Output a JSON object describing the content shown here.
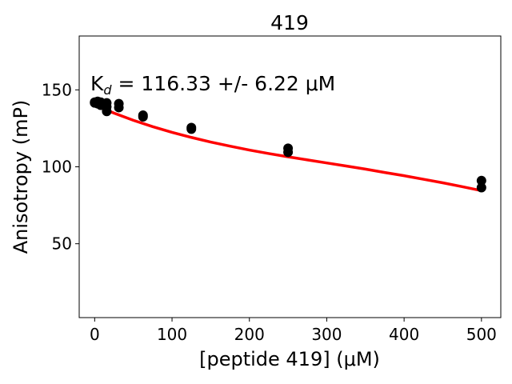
{
  "chart_data": {
    "type": "scatter",
    "title": "419",
    "xlabel": "[peptide 419] (μM)",
    "ylabel": "Anisotropy (mP)",
    "annotation": {
      "prefix": "K",
      "subscript": "d",
      "text": " = 116.33 +/- 6.22 μM"
    },
    "xlim": [
      -20,
      525
    ],
    "ylim": [
      2,
      185
    ],
    "xticks": [
      0,
      100,
      200,
      300,
      400,
      500
    ],
    "yticks": [
      50,
      100,
      150
    ],
    "grid": false,
    "points": [
      {
        "x": 0,
        "y": 141.5
      },
      {
        "x": 0,
        "y": 142.0
      },
      {
        "x": 3.9,
        "y": 141.0
      },
      {
        "x": 3.9,
        "y": 142.5
      },
      {
        "x": 7.8,
        "y": 140.0
      },
      {
        "x": 7.8,
        "y": 142.0
      },
      {
        "x": 15.6,
        "y": 136.0
      },
      {
        "x": 15.6,
        "y": 139.0
      },
      {
        "x": 15.6,
        "y": 141.5
      },
      {
        "x": 31.25,
        "y": 138.5
      },
      {
        "x": 31.25,
        "y": 141.0
      },
      {
        "x": 62.5,
        "y": 132.5
      },
      {
        "x": 62.5,
        "y": 133.5
      },
      {
        "x": 125,
        "y": 124.5
      },
      {
        "x": 125,
        "y": 125.5
      },
      {
        "x": 250,
        "y": 109.5
      },
      {
        "x": 250,
        "y": 112.0
      },
      {
        "x": 500,
        "y": 86.5
      },
      {
        "x": 500,
        "y": 91.0
      }
    ],
    "fit": {
      "color": "#ff0000",
      "x": [
        0,
        25,
        50,
        75,
        100,
        125,
        150,
        175,
        200,
        225,
        250,
        275,
        300,
        325,
        350,
        375,
        400,
        425,
        450,
        475,
        500
      ],
      "y": [
        140,
        134.9,
        130.2,
        126.1,
        122.4,
        119.1,
        116.1,
        113.4,
        110.9,
        108.6,
        106.5,
        104.5,
        102.5,
        100.5,
        98.5,
        96.3,
        94.2,
        91.9,
        89.6,
        87.1,
        84.5
      ]
    },
    "point_color": "#000000"
  }
}
